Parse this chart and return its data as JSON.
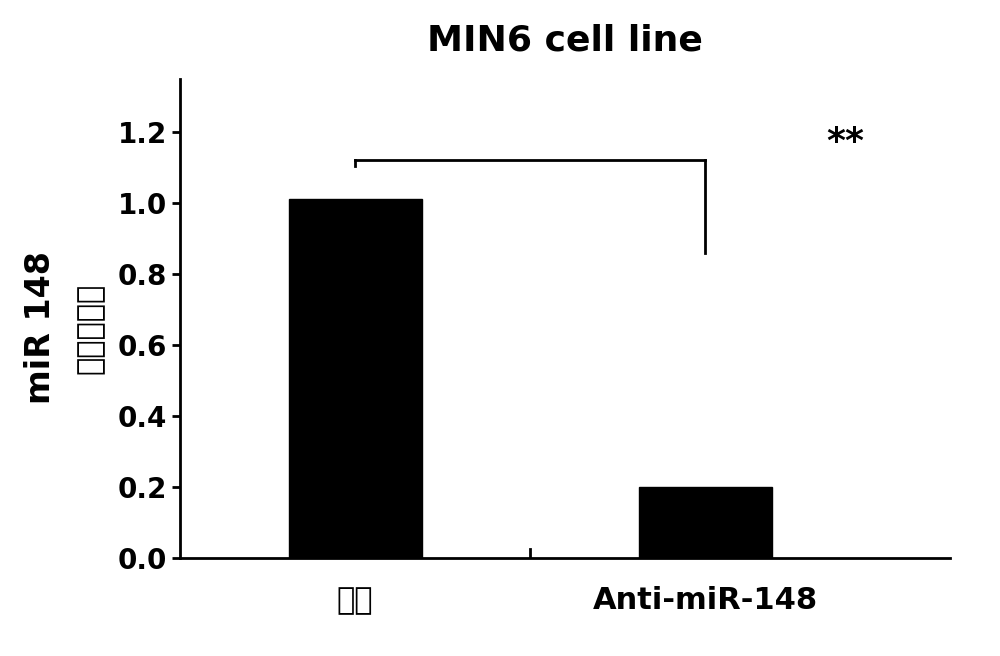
{
  "title": "MIN6 cell line",
  "categories": [
    "对照",
    "Anti-miR-148"
  ],
  "values": [
    1.01,
    0.2
  ],
  "bar_colors": [
    "#000000",
    "#000000"
  ],
  "bar_width": 0.38,
  "bar_positions": [
    1,
    2
  ],
  "xlim": [
    0.5,
    2.7
  ],
  "ylim": [
    0,
    1.35
  ],
  "yticks": [
    0,
    0.2,
    0.4,
    0.6,
    0.8,
    1.0,
    1.2
  ],
  "ylabel_line1": "miR 148",
  "ylabel_line2": "相对表达量",
  "title_fontsize": 26,
  "ytick_fontsize": 20,
  "ylabel_fontsize1": 24,
  "ylabel_fontsize2": 22,
  "xtick_fontsize": 22,
  "significance_text": "**",
  "sig_text_fontsize": 26,
  "sig_line_y": 1.12,
  "sig_drop_y": 0.86,
  "background_color": "#ffffff"
}
